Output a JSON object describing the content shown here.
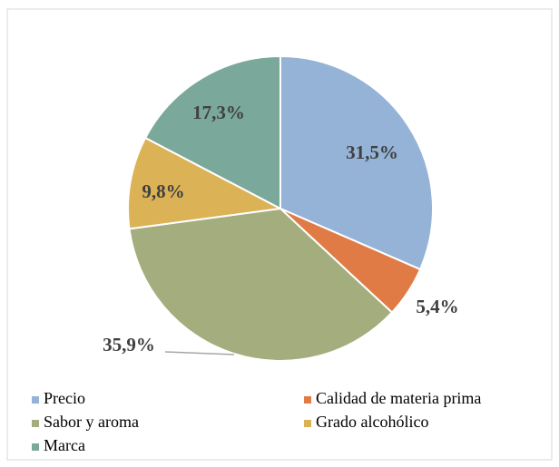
{
  "chart_data": {
    "type": "pie",
    "categories": [
      "Precio",
      "Calidad de materia prima",
      "Sabor y aroma",
      "Grado alcohólico",
      "Marca"
    ],
    "values": [
      31.5,
      5.4,
      35.9,
      9.8,
      17.3
    ],
    "value_labels": [
      "31,5%",
      "5,4%",
      "35,9%",
      "9,8%",
      "17,3%"
    ],
    "colors": [
      "#95b3d7",
      "#e07b45",
      "#a3ad7d",
      "#dcb257",
      "#7aa89a"
    ],
    "legend": "bottom"
  }
}
